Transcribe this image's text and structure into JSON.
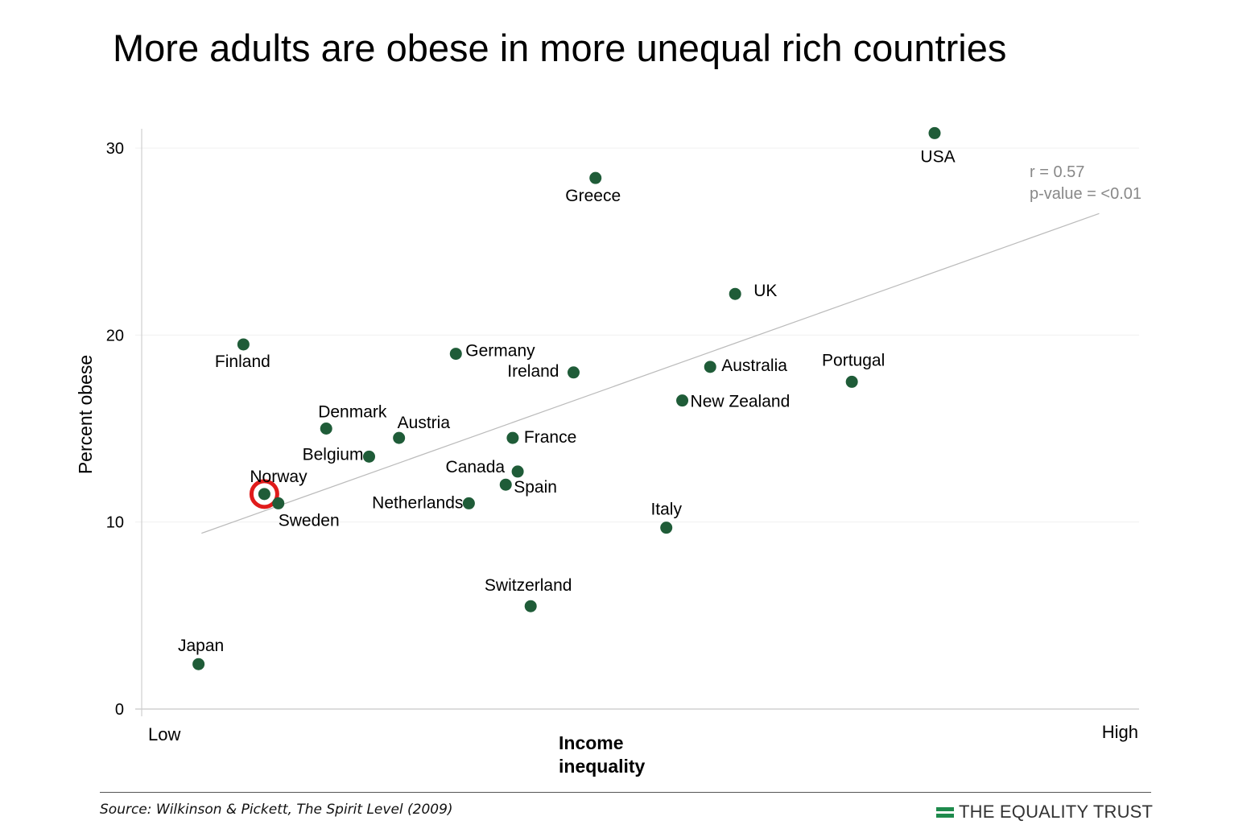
{
  "title": "More adults are obese in more unequal rich countries",
  "source": "Source: Wilkinson & Pickett, The Spirit Level (2009)",
  "brand": {
    "name": "THE EQUALITY TRUST",
    "icon": "equality-trust-logo-icon",
    "color": "#1e8a4c"
  },
  "chart_data": {
    "type": "scatter",
    "xlabel": "Income inequality",
    "ylabel": "Percent obese",
    "x_tick_labels": {
      "low": "Low",
      "high": "High"
    },
    "xlim": [
      0,
      100
    ],
    "ylim": [
      0,
      30
    ],
    "y_ticks": [
      0,
      10,
      20,
      30
    ],
    "grid": true,
    "point_color": "#1f5c38",
    "highlight_color": "#e01b1b",
    "trend_line": {
      "x": [
        6,
        96
      ],
      "y": [
        9.4,
        26.5
      ],
      "color": "#bbbbbb"
    },
    "annotation": {
      "r": "r = 0.57",
      "p": "p-value = <0.01"
    },
    "points": [
      {
        "label": "USA",
        "x": 79.5,
        "y": 30.8
      },
      {
        "label": "Greece",
        "x": 45.5,
        "y": 28.4
      },
      {
        "label": "UK",
        "x": 59.5,
        "y": 22.2
      },
      {
        "label": "Finland",
        "x": 10.2,
        "y": 19.5
      },
      {
        "label": "Germany",
        "x": 31.5,
        "y": 19.0
      },
      {
        "label": "Ireland",
        "x": 43.3,
        "y": 18.0
      },
      {
        "label": "Australia",
        "x": 57.0,
        "y": 18.3
      },
      {
        "label": "Portugal",
        "x": 71.2,
        "y": 17.5
      },
      {
        "label": "New Zealand",
        "x": 54.2,
        "y": 16.5
      },
      {
        "label": "Denmark",
        "x": 18.5,
        "y": 15.0
      },
      {
        "label": "Austria",
        "x": 25.8,
        "y": 14.5
      },
      {
        "label": "France",
        "x": 37.2,
        "y": 14.5
      },
      {
        "label": "Belgium",
        "x": 22.8,
        "y": 13.5
      },
      {
        "label": "Canada",
        "x": 37.7,
        "y": 12.7
      },
      {
        "label": "Spain",
        "x": 36.5,
        "y": 12.0
      },
      {
        "label": "Norway",
        "x": 12.3,
        "y": 11.5,
        "highlight": true
      },
      {
        "label": "Sweden",
        "x": 13.7,
        "y": 11.0
      },
      {
        "label": "Netherlands",
        "x": 32.8,
        "y": 11.0
      },
      {
        "label": "Italy",
        "x": 52.6,
        "y": 9.7
      },
      {
        "label": "Switzerland",
        "x": 39.0,
        "y": 5.5
      },
      {
        "label": "Japan",
        "x": 5.7,
        "y": 2.4
      }
    ]
  }
}
